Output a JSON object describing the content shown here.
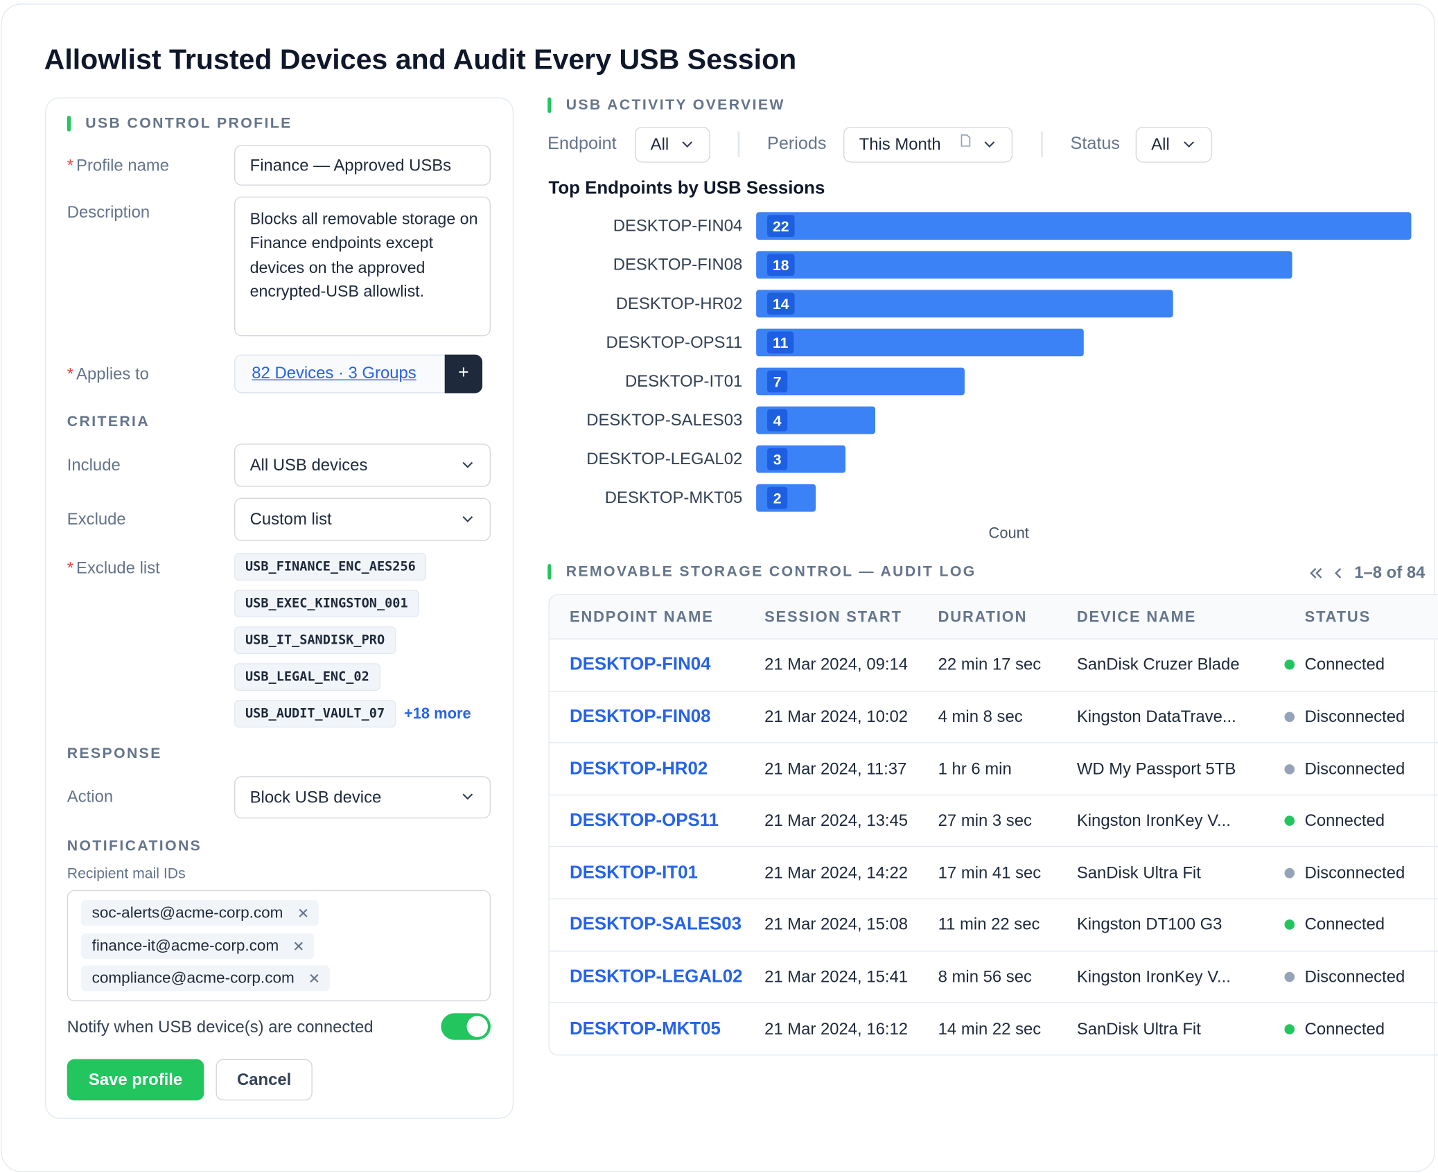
{
  "page": {
    "title": "Allowlist Trusted Devices and Audit Every USB Session"
  },
  "profile": {
    "heading": "USB CONTROL PROFILE",
    "required_mark": "*",
    "profile_name": {
      "label": "Profile name",
      "value": "Finance — Approved USBs"
    },
    "description": {
      "label": "Description",
      "value": "Blocks all removable storage on Finance endpoints except devices on the approved encrypted-USB allowlist."
    },
    "applies_to": {
      "label": "Applies to",
      "value": "82 Devices · 3 Groups",
      "button": "+"
    },
    "criteria": {
      "heading": "CRITERIA",
      "include": {
        "label": "Include",
        "value": "All USB devices"
      },
      "exclude": {
        "label": "Exclude",
        "value": "Custom list"
      },
      "exclude_list": {
        "label": "Exclude list",
        "items": [
          "USB_FINANCE_ENC_AES256",
          "USB_EXEC_KINGSTON_001",
          "USB_IT_SANDISK_PRO",
          "USB_LEGAL_ENC_02",
          "USB_AUDIT_VAULT_07"
        ],
        "more": "+18 more"
      }
    },
    "response": {
      "heading": "RESPONSE",
      "action": {
        "label": "Action",
        "value": "Block USB device"
      }
    },
    "notifications": {
      "heading": "NOTIFICATIONS",
      "recipients_label": "Recipient mail IDs",
      "recipients": [
        "soc-alerts@acme-corp.com",
        "finance-it@acme-corp.com",
        "compliance@acme-corp.com"
      ],
      "toggle_label": "Notify when USB device(s) are connected",
      "toggle_on": true
    },
    "actions": {
      "save": "Save profile",
      "cancel": "Cancel"
    }
  },
  "overview": {
    "heading": "USB ACTIVITY OVERVIEW",
    "filters": [
      {
        "label": "Endpoint",
        "value": "All"
      },
      {
        "label": "Periods",
        "value": "This Month"
      },
      {
        "label": "Status",
        "value": "All"
      }
    ]
  },
  "chart_data": {
    "type": "bar",
    "orientation": "horizontal",
    "title": "Top Endpoints by USB Sessions",
    "x_label": "Count",
    "categories": [
      "DESKTOP-FIN04",
      "DESKTOP-FIN08",
      "DESKTOP-HR02",
      "DESKTOP-OPS11",
      "DESKTOP-IT01",
      "DESKTOP-SALES03",
      "DESKTOP-LEGAL02",
      "DESKTOP-MKT05"
    ],
    "values": [
      22,
      18,
      14,
      11,
      7,
      4,
      3,
      2
    ],
    "color": "#3b82f6",
    "label_badge_color": "#1d5fe0"
  },
  "audit_log": {
    "heading": "REMOVABLE STORAGE CONTROL — AUDIT LOG",
    "pagination": "1–8 of 84",
    "columns": [
      "ENDPOINT NAME",
      "SESSION START",
      "DURATION",
      "DEVICE NAME",
      "STATUS"
    ],
    "rows": [
      {
        "cells": [
          "DESKTOP-FIN04",
          "21 Mar 2024, 09:14",
          "22 min 17 sec",
          "SanDisk Cruzer Blade",
          "Connected"
        ],
        "status_color": "#22c55e"
      },
      {
        "cells": [
          "DESKTOP-FIN08",
          "21 Mar 2024, 10:02",
          "4 min 8 sec",
          "Kingston DataTrave...",
          "Disconnected"
        ],
        "status_color": "#94a3b8"
      },
      {
        "cells": [
          "DESKTOP-HR02",
          "21 Mar 2024, 11:37",
          "1 hr 6 min",
          "WD My Passport 5TB",
          "Disconnected"
        ],
        "status_color": "#94a3b8"
      },
      {
        "cells": [
          "DESKTOP-OPS11",
          "21 Mar 2024, 13:45",
          "27 min 3 sec",
          "Kingston IronKey V...",
          "Connected"
        ],
        "status_color": "#22c55e"
      },
      {
        "cells": [
          "DESKTOP-IT01",
          "21 Mar 2024, 14:22",
          "17 min 41 sec",
          "SanDisk Ultra Fit",
          "Disconnected"
        ],
        "status_color": "#94a3b8"
      },
      {
        "cells": [
          "DESKTOP-SALES03",
          "21 Mar 2024, 15:08",
          "11 min 22 sec",
          "Kingston DT100 G3",
          "Connected"
        ],
        "status_color": "#22c55e"
      },
      {
        "cells": [
          "DESKTOP-LEGAL02",
          "21 Mar 2024, 15:41",
          "8 min 56 sec",
          "Kingston IronKey V...",
          "Disconnected"
        ],
        "status_color": "#94a3b8"
      },
      {
        "cells": [
          "DESKTOP-MKT05",
          "21 Mar 2024, 16:12",
          "14 min 22 sec",
          "SanDisk Ultra Fit",
          "Connected"
        ],
        "status_color": "#22c55e"
      }
    ]
  }
}
